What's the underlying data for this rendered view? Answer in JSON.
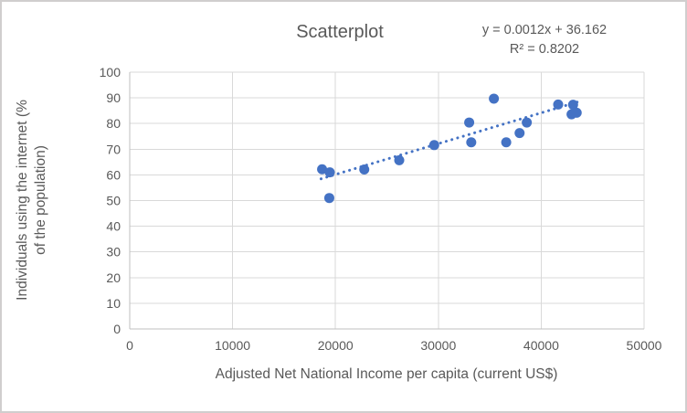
{
  "chart": {
    "title": "Scatterplot",
    "equation_line1": "y = 0.0012x + 36.162",
    "equation_line2": "R² = 0.8202",
    "x_axis_title": "Adjusted Net National Income per capita (current US$)",
    "y_axis_title_line1": "Individuals using the internet (%",
    "y_axis_title_line2": "of the population)",
    "colors": {
      "marker": "#4472C4",
      "trendline": "#4472C4",
      "gridline": "#D9D9D9",
      "axis_line": "#BFBFBF",
      "text": "#595959"
    }
  },
  "chart_data": {
    "type": "scatter",
    "title": "Scatterplot",
    "xlabel": "Adjusted Net National Income per capita (current US$)",
    "ylabel": "Individuals using the internet (% of the population)",
    "xlim": [
      0,
      50000
    ],
    "ylim": [
      0,
      100
    ],
    "x_ticks": [
      0,
      10000,
      20000,
      30000,
      40000,
      50000
    ],
    "y_ticks": [
      0,
      10,
      20,
      30,
      40,
      50,
      60,
      70,
      80,
      90,
      100
    ],
    "grid": true,
    "legend": false,
    "marker_radius": 5.5,
    "points": [
      [
        18700,
        62.2
      ],
      [
        19450,
        61.0
      ],
      [
        19400,
        51.0
      ],
      [
        22800,
        62.1
      ],
      [
        26200,
        65.7
      ],
      [
        29600,
        71.6
      ],
      [
        33000,
        80.4
      ],
      [
        33200,
        72.7
      ],
      [
        35400,
        89.7
      ],
      [
        36600,
        72.7
      ],
      [
        37900,
        76.3
      ],
      [
        38600,
        80.4
      ],
      [
        41650,
        87.4
      ],
      [
        43100,
        87.3
      ],
      [
        42950,
        83.6
      ],
      [
        43450,
        84.2
      ]
    ],
    "trendline": {
      "style": "dotted",
      "slope": 0.0012,
      "intercept": 36.162,
      "r_squared": 0.8202,
      "label": "y = 0.0012x + 36.162",
      "r2_label": "R² = 0.8202",
      "x_start": 18600,
      "x_end": 43800
    }
  }
}
